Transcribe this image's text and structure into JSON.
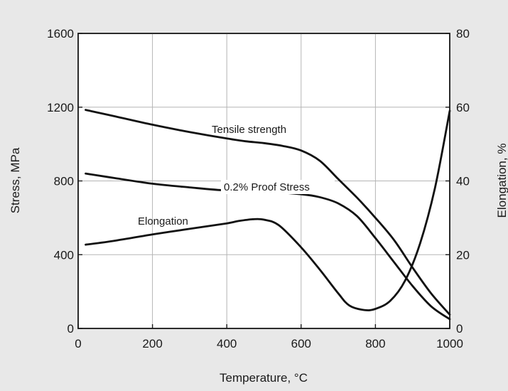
{
  "chart_data": {
    "type": "line",
    "xlabel": "Temperature, °C",
    "ylabel": "Stress, MPa",
    "y2label": "Elongation, %",
    "xlim": [
      0,
      1000
    ],
    "ylim": [
      0,
      1600
    ],
    "y2lim": [
      0,
      80
    ],
    "xticks": [
      "0",
      "200",
      "400",
      "600",
      "800",
      "1000"
    ],
    "yticks": [
      "0",
      "400",
      "800",
      "1200",
      "1600"
    ],
    "y2ticks": [
      "0",
      "20",
      "40",
      "60",
      "80"
    ],
    "grid": true,
    "series": [
      {
        "name": "Tensile strength",
        "axis": "left",
        "x": [
          20,
          100,
          200,
          300,
          400,
          450,
          500,
          550,
          600,
          650,
          700,
          750,
          800,
          850,
          900,
          950,
          1000
        ],
        "y": [
          1185,
          1150,
          1105,
          1065,
          1030,
          1015,
          1005,
          990,
          965,
          910,
          810,
          710,
          600,
          480,
          330,
          190,
          75
        ]
      },
      {
        "name": "0.2% Proof Stress",
        "axis": "left",
        "x": [
          20,
          100,
          200,
          300,
          400,
          500,
          600,
          650,
          700,
          750,
          800,
          850,
          900,
          950,
          1000
        ],
        "y": [
          840,
          815,
          785,
          765,
          748,
          742,
          728,
          712,
          678,
          610,
          490,
          360,
          230,
          120,
          50
        ]
      },
      {
        "name": "Elongation",
        "axis": "right",
        "x": [
          20,
          100,
          200,
          300,
          400,
          430,
          470,
          500,
          540,
          600,
          650,
          700,
          730,
          770,
          800,
          840,
          880,
          920,
          960,
          1000
        ],
        "y": [
          22.7,
          23.8,
          25.5,
          27,
          28.5,
          29.1,
          29.6,
          29.5,
          28,
          22,
          16,
          9.5,
          6.2,
          5,
          5.3,
          7.5,
          13,
          23,
          38,
          59
        ]
      }
    ]
  }
}
